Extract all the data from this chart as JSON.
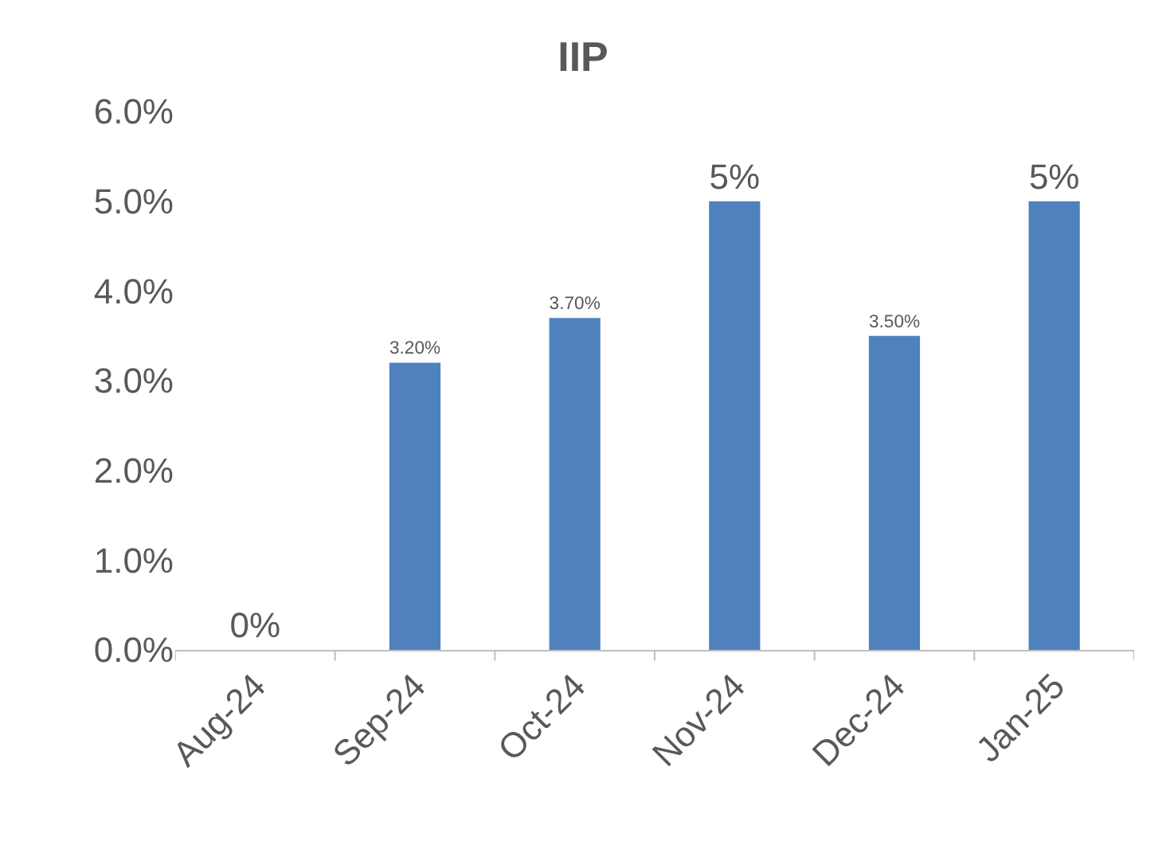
{
  "chart_data": {
    "type": "bar",
    "title": "IIP",
    "categories": [
      "Aug-24",
      "Sep-24",
      "Oct-24",
      "Nov-24",
      "Dec-24",
      "Jan-25"
    ],
    "values": [
      0,
      3.2,
      3.7,
      5,
      3.5,
      5
    ],
    "value_labels": [
      "0%",
      "3.20%",
      "3.70%",
      "5%",
      "3.50%",
      "5%"
    ],
    "color": "#4f81bd",
    "ylim": [
      0,
      6
    ],
    "yticks": [
      {
        "value": 0,
        "label": "0.0%"
      },
      {
        "value": 1,
        "label": "1.0%"
      },
      {
        "value": 2,
        "label": "2.0%"
      },
      {
        "value": 3,
        "label": "3.0%"
      },
      {
        "value": 4,
        "label": "4.0%"
      },
      {
        "value": 5,
        "label": "5.0%"
      },
      {
        "value": 6,
        "label": "6.0%"
      }
    ],
    "grid": false,
    "legend": false
  }
}
